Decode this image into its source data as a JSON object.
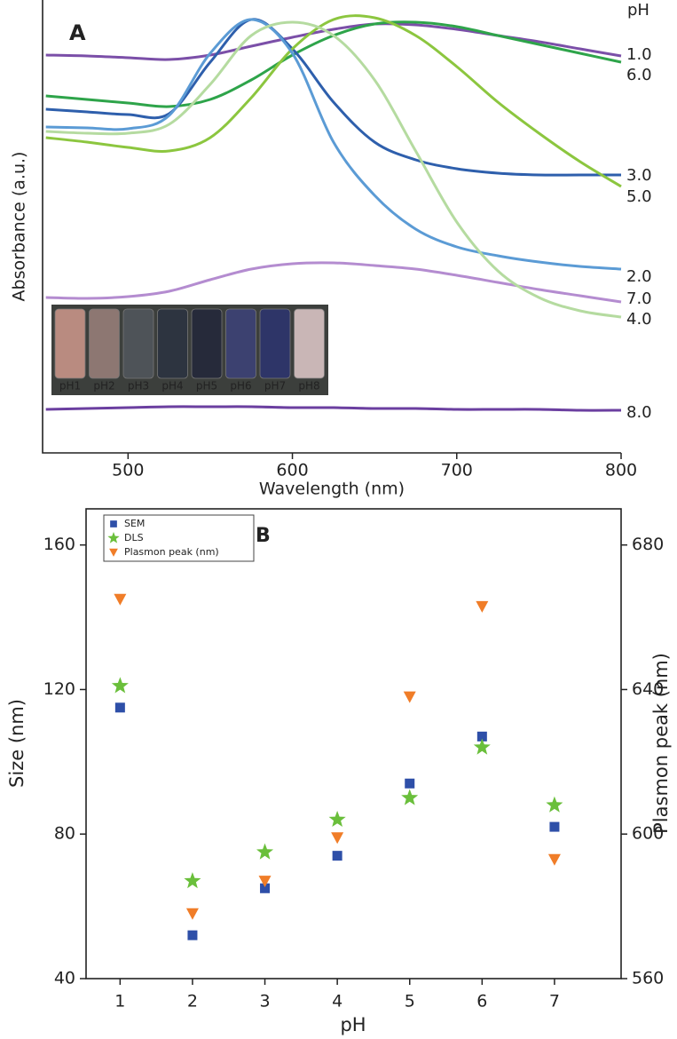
{
  "chart_data": [
    {
      "type": "line",
      "label": "A",
      "x_label": "Wavelength (nm)",
      "y_label": "Absorbance (a.u.)",
      "legend_title": "pH",
      "x": [
        450,
        475,
        500,
        525,
        550,
        575,
        600,
        625,
        650,
        675,
        700,
        725,
        750,
        775,
        800
      ],
      "xlim": [
        448,
        800
      ],
      "xticks": [
        500,
        600,
        700,
        800
      ],
      "ylim": [
        0,
        102
      ],
      "inset_labels": [
        "pH1",
        "pH2",
        "pH3",
        "pH4",
        "pH5",
        "pH6",
        "pH7",
        "pH8"
      ],
      "series": [
        {
          "name": "1.0",
          "color": "#7b4fa8",
          "values": [
            89.6,
            89.4,
            89,
            88.6,
            89.6,
            91.6,
            93.6,
            95.4,
            96.6,
            96.4,
            95.4,
            94,
            92.6,
            91,
            89.4
          ]
        },
        {
          "name": "6.0",
          "color": "#2ea44a",
          "values": [
            80.4,
            79.6,
            78.8,
            78,
            79.6,
            84,
            89.6,
            94,
            96.6,
            97,
            96,
            94,
            92,
            90,
            88
          ]
        },
        {
          "name": "3.0",
          "color": "#2e5fac",
          "values": [
            77.4,
            76.8,
            76.2,
            76.4,
            88,
            97.6,
            91,
            79,
            70,
            66,
            64,
            63,
            62.6,
            62.6,
            62.6
          ]
        },
        {
          "name": "5.0",
          "color": "#8cc63f",
          "values": [
            71,
            70,
            68.8,
            68,
            71,
            80,
            91,
            97.6,
            98,
            94,
            87,
            79,
            72,
            65.6,
            60
          ]
        },
        {
          "name": "2.0",
          "color": "#5b9bd5",
          "values": [
            73.4,
            73.2,
            73,
            76,
            90,
            97.6,
            90,
            70,
            58,
            50.4,
            46.4,
            44.4,
            43,
            42,
            41.4
          ]
        },
        {
          "name": "7.0",
          "color": "#b48cd0",
          "values": [
            35,
            34.8,
            35.2,
            36.4,
            39,
            41.4,
            42.6,
            42.8,
            42.2,
            41.4,
            40,
            38.4,
            36.8,
            35.4,
            34
          ]
        },
        {
          "name": "4.0",
          "color": "#b5dba0",
          "values": [
            72.4,
            72,
            72,
            74,
            83,
            94,
            97,
            94,
            84,
            68,
            52,
            41,
            35,
            32,
            30.6
          ]
        },
        {
          "name": "8.0",
          "color": "#6b3fa0",
          "values": [
            9.8,
            10,
            10.2,
            10.4,
            10.4,
            10.4,
            10.2,
            10.2,
            10,
            10,
            9.8,
            9.8,
            9.8,
            9.6,
            9.6
          ]
        }
      ]
    },
    {
      "type": "scatter",
      "label": "B",
      "x_label": "pH",
      "y_label": "Size (nm)",
      "y2_label": "Plasmon peak (nm)",
      "x": [
        1,
        2,
        3,
        4,
        5,
        6,
        7
      ],
      "xlim": [
        0.53,
        7.92
      ],
      "xticks": [
        1,
        2,
        3,
        4,
        5,
        6,
        7
      ],
      "ylim": [
        40,
        170
      ],
      "yticks": [
        40,
        80,
        120,
        160
      ],
      "y2lim": [
        560,
        690
      ],
      "y2ticks": [
        560,
        600,
        640,
        680
      ],
      "legend": "upper left",
      "series": [
        {
          "name": "SEM",
          "color": "#2e4fa8",
          "marker": "square",
          "values": [
            115,
            52,
            65,
            74,
            94,
            107,
            82
          ]
        },
        {
          "name": "DLS",
          "color": "#6abf3b",
          "marker": "star",
          "values": [
            121,
            67,
            75,
            84,
            90,
            104,
            88
          ]
        },
        {
          "name": "Plasmon peak (nm)",
          "color": "#f07d28",
          "marker": "triangle-down",
          "axis": "y2",
          "values": [
            665,
            578,
            587,
            599,
            638,
            663,
            593
          ]
        }
      ]
    }
  ]
}
